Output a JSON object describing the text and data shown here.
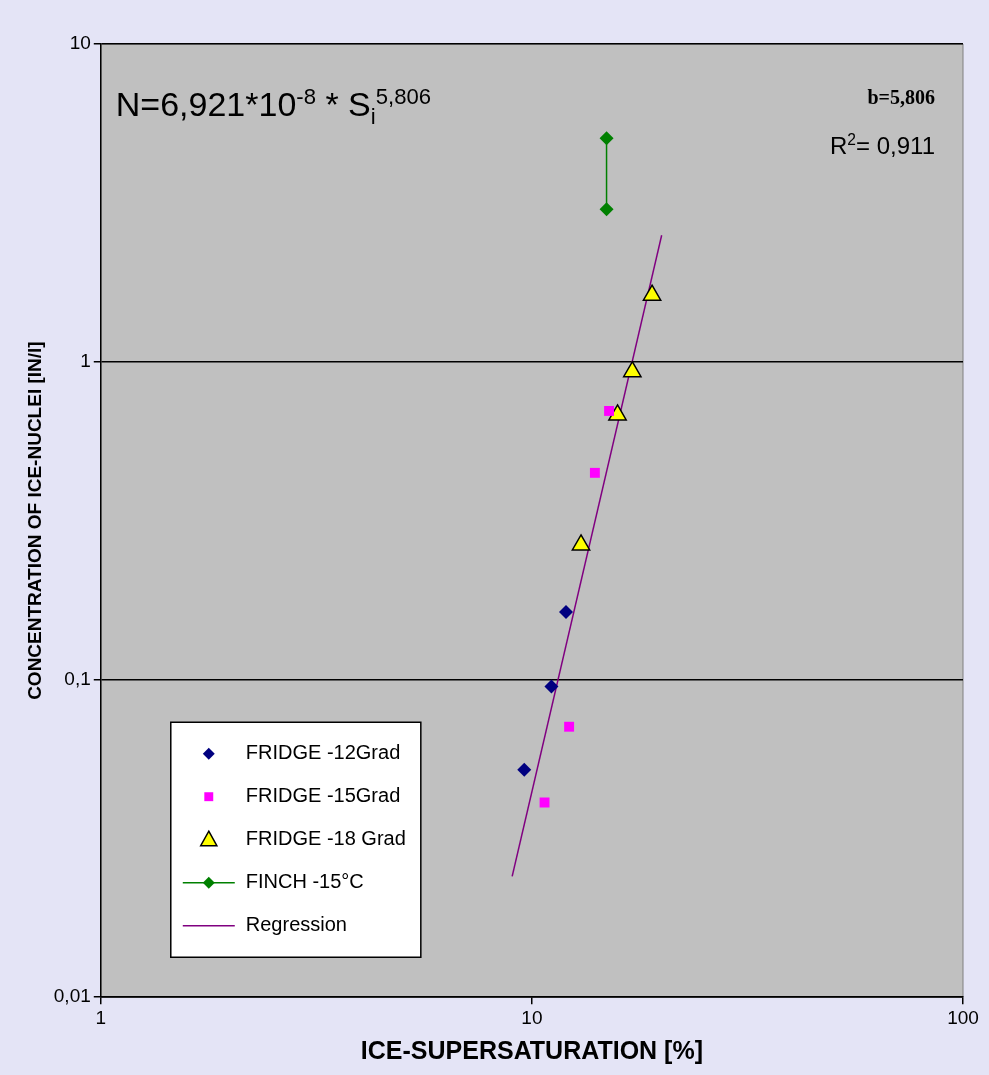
{
  "chart_data": {
    "type": "scatter",
    "xlabel": "ICE-SUPERSATURATION [%]",
    "ylabel": "CONCENTRATION OF ICE-NUCLEI [IN/l]",
    "annotations": [
      "N=6,921*10$^{-8}$ * S$_{i}$$^{5,806}$",
      "b=5,806",
      "R$^{2}$= 0,911"
    ],
    "log": "xy",
    "xlim": [
      1,
      100
    ],
    "xticks": [
      1,
      10,
      100
    ],
    "ylim": [
      0.01,
      10
    ],
    "yticks": [
      {
        "value": 0.01,
        "label": "0,01"
      },
      {
        "value": 0.1,
        "label": "0,1"
      },
      1,
      10
    ],
    "grid": "y",
    "legend": "bottom left",
    "series": [
      {
        "name": "FRIDGE -12Grad",
        "type": "scatter",
        "marker": "diamond",
        "color": "#000080",
        "x": [
          12.0,
          11.1,
          9.6
        ],
        "values": [
          0.163,
          0.095,
          0.052
        ]
      },
      {
        "name": "FRIDGE -15Grad",
        "type": "scatter",
        "marker": "square",
        "color": "#ff00ff",
        "x": [
          15.1,
          14.0,
          12.2,
          10.7
        ],
        "values": [
          0.7,
          0.447,
          0.071,
          0.041
        ]
      },
      {
        "name": "FRIDGE -18 Grad",
        "type": "scatter",
        "marker": "triangle",
        "color": "#ffff00",
        "x": [
          19.0,
          17.1,
          15.8,
          13.0
        ],
        "values": [
          1.62,
          0.93,
          0.68,
          0.265
        ]
      },
      {
        "name": "FINCH -15°C",
        "type": "line",
        "marker": "diamond",
        "color": "#008000",
        "x": [
          14.9,
          14.9
        ],
        "values": [
          5.05,
          3.02
        ]
      },
      {
        "name": "Regression",
        "type": "line",
        "marker": "none",
        "color": "#800080",
        "x": [
          9,
          20
        ],
        "values": [
          0.024,
          2.5
        ]
      }
    ]
  }
}
